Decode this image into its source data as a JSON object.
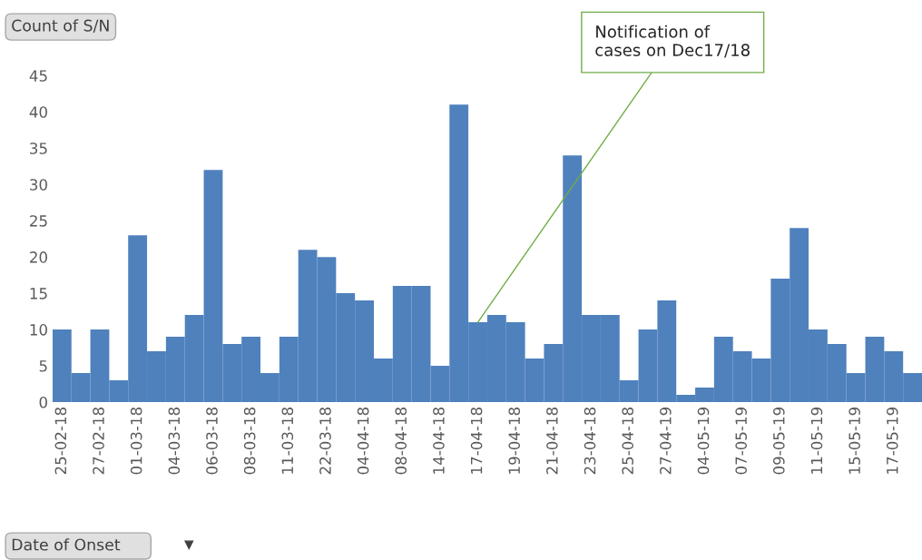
{
  "chart_data": {
    "type": "bar",
    "ylabel": "Count of S/N",
    "xlabel": "Date of Onset",
    "categories": [
      "25-02-18",
      null,
      "27-02-18",
      null,
      "01-03-18",
      null,
      "04-03-18",
      null,
      "06-03-18",
      null,
      "08-03-18",
      null,
      "11-03-18",
      null,
      "22-03-18",
      null,
      "04-04-18",
      null,
      "08-04-18",
      null,
      "14-04-18",
      null,
      "17-04-18",
      null,
      "19-04-18",
      null,
      "21-04-18",
      null,
      "23-04-18",
      null,
      "25-04-18",
      null,
      "27-04-19",
      null,
      "04-05-19",
      null,
      "07-05-19",
      null,
      "09-05-19",
      null,
      "11-05-19",
      null,
      "15-05-19",
      null,
      "17-05-19",
      null
    ],
    "values": [
      10,
      4,
      10,
      3,
      23,
      7,
      9,
      12,
      32,
      8,
      9,
      4,
      9,
      21,
      20,
      15,
      14,
      6,
      16,
      16,
      5,
      41,
      11,
      12,
      11,
      6,
      8,
      34,
      12,
      12,
      3,
      10,
      14,
      1,
      2,
      9,
      7,
      6,
      17,
      24,
      10,
      8,
      4,
      9,
      7,
      4
    ],
    "color": "#4f81bd",
    "ylim": [
      0,
      45
    ],
    "yticks": [
      0,
      5,
      10,
      15,
      20,
      25,
      30,
      35,
      40,
      45
    ],
    "grid": false,
    "annotations": [
      {
        "text": "Notification of\ncases on Dec17/18",
        "x": "17-04-18",
        "y": 11
      }
    ]
  }
}
